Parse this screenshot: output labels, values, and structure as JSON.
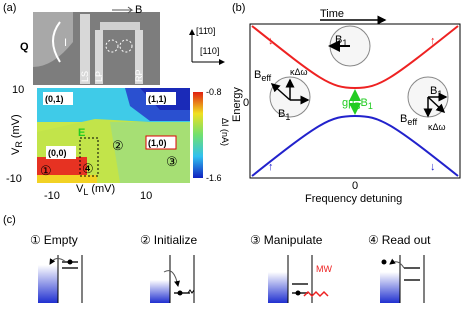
{
  "panel_a": {
    "label": "(a)",
    "field": "B",
    "axis_top": "[11̄0]",
    "axis_right": "[110]",
    "gate_q": "Q",
    "current": "I",
    "gates": [
      "LS",
      "LP",
      "RP"
    ],
    "colorbar": {
      "ticks": [
        -0.8,
        -1.6
      ],
      "label": "ΔI (nA)"
    },
    "y_axis": {
      "symbol": "V",
      "sub": "R",
      "unit": "(mV)",
      "ticks": [
        10,
        -10
      ]
    },
    "x_axis": {
      "symbol": "V",
      "sub": "L",
      "unit": "(mV)",
      "ticks": [
        -10,
        10
      ]
    },
    "regions": [
      "(0,1)",
      "(1,1)",
      "(0,0)",
      "(1,0)"
    ],
    "marker": "E",
    "steps": [
      "①",
      "②",
      "③",
      "④"
    ]
  },
  "panel_b": {
    "label": "(b)",
    "time": "Time",
    "y_label": "Energy",
    "x_label": "Frequency detuning",
    "x_zero": 0,
    "y_zero": 0,
    "spin_down": "↓",
    "spin_up": "↑",
    "b_eff": {
      "main": "B",
      "sub": "eff"
    },
    "b_1": {
      "main": "B",
      "sub": "1"
    },
    "kappa": "κΔω",
    "gap": {
      "g": "gμ",
      "g_sub": "B",
      "b": "B",
      "b_sub": "1"
    }
  },
  "panel_c": {
    "label": "(c)",
    "steps": [
      {
        "num": "①",
        "name": "Empty"
      },
      {
        "num": "②",
        "name": "Initialize"
      },
      {
        "num": "③",
        "name": "Manipulate"
      },
      {
        "num": "④",
        "name": "Read out"
      }
    ],
    "mw": "MW"
  }
}
